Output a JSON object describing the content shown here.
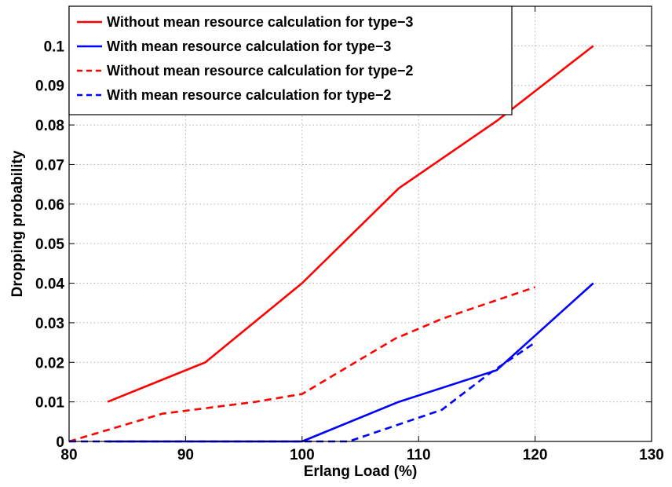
{
  "chart_data": {
    "type": "line",
    "title": "",
    "xlabel": "Erlang Load (%)",
    "ylabel": "Dropping probability",
    "xlim": [
      80,
      130
    ],
    "ylim": [
      0,
      0.11
    ],
    "xticks": [
      80,
      90,
      100,
      110,
      120,
      130
    ],
    "xtick_labels": [
      "80",
      "90",
      "100",
      "110",
      "120",
      "130"
    ],
    "yticks": [
      0,
      0.01,
      0.02,
      0.03,
      0.04,
      0.05,
      0.06,
      0.07,
      0.08,
      0.09,
      0.1
    ],
    "ytick_labels": [
      "0",
      "0.01",
      "0.02",
      "0.03",
      "0.04",
      "0.05",
      "0.06",
      "0.07",
      "0.08",
      "0.09",
      "0.1"
    ],
    "grid": true,
    "legend_position": "top-left",
    "series": [
      {
        "name": "Without mean resource calculation for type−3",
        "color": "#ff0000",
        "style": "solid",
        "x": [
          83.3,
          91.7,
          100,
          108.3,
          116.7,
          125
        ],
        "y": [
          0.01,
          0.02,
          0.04,
          0.064,
          0.081,
          0.1
        ]
      },
      {
        "name": "With mean resource calculation for type−3",
        "color": "#0000ff",
        "style": "solid",
        "x": [
          83.3,
          91.7,
          100,
          108.3,
          116.7,
          125
        ],
        "y": [
          0.0,
          0.0,
          0.0,
          0.01,
          0.018,
          0.04
        ]
      },
      {
        "name": "Without mean resource calculation for type−2",
        "color": "#ff0000",
        "style": "dashed",
        "x": [
          80,
          88,
          96,
          100,
          104,
          108,
          112,
          116,
          120
        ],
        "y": [
          0.0,
          0.007,
          0.01,
          0.012,
          0.019,
          0.026,
          0.031,
          0.035,
          0.039
        ]
      },
      {
        "name": "With mean resource calculation for type−2",
        "color": "#0000ff",
        "style": "dashed",
        "x": [
          80,
          88,
          96,
          100,
          104,
          108,
          112,
          116,
          120
        ],
        "y": [
          0.0,
          0.0,
          0.0,
          0.0,
          0.0,
          0.004,
          0.008,
          0.017,
          0.025
        ]
      }
    ]
  }
}
